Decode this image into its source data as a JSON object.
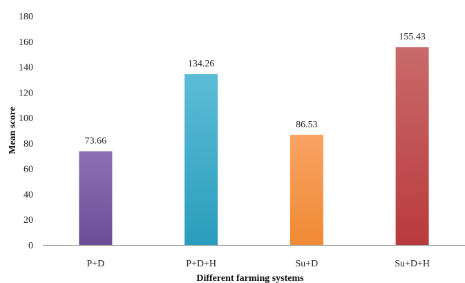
{
  "chart_data": {
    "type": "bar",
    "categories": [
      "P+D",
      "P+D+H",
      "Su+D",
      "Su+D+H"
    ],
    "values": [
      73.66,
      134.26,
      86.53,
      155.43
    ],
    "value_labels": [
      "73.66",
      "134.26",
      "86.53",
      "155.43"
    ],
    "xlabel": "Different farming systems",
    "ylabel": "Mean score",
    "ylim": [
      0,
      180
    ],
    "yticks": [
      0,
      20,
      40,
      60,
      80,
      100,
      120,
      140,
      160,
      180
    ],
    "grid": false,
    "legend": "none",
    "bar_colors": [
      {
        "top": "#8d70b3",
        "bottom": "#6a4d96"
      },
      {
        "top": "#5cbcd6",
        "bottom": "#2a9dbd"
      },
      {
        "top": "#f9a364",
        "bottom": "#ef8a34"
      },
      {
        "top": "#c96a6a",
        "bottom": "#b93a3d"
      }
    ]
  }
}
